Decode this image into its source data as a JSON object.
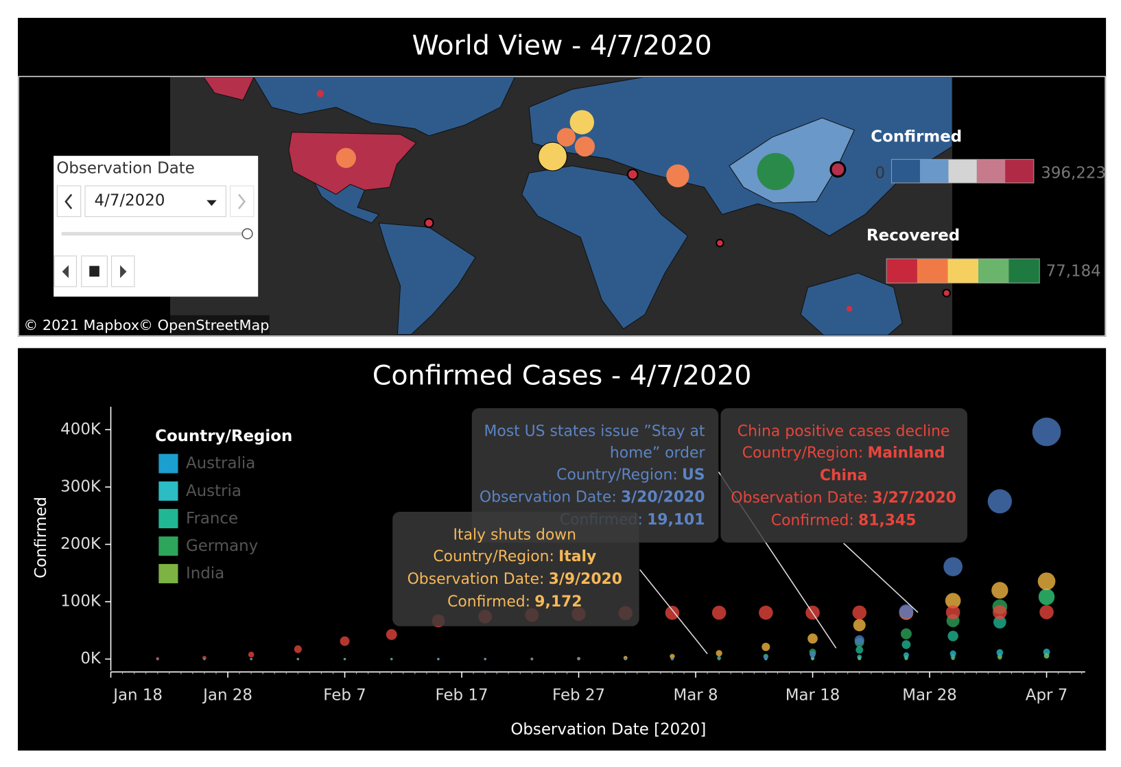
{
  "map_view": {
    "title": "World View - 4/7/2020",
    "attribution": [
      "© 2021 Mapbox",
      "© OpenStreetMap"
    ],
    "filter": {
      "title": "Observation Date",
      "value": "4/7/2020"
    },
    "legends": [
      {
        "title": "Confirmed",
        "min": "0",
        "max": "396,223",
        "colors": [
          "#2d5a8e",
          "#6a98c8",
          "#d4d4d4",
          "#c77a8c",
          "#b02a45"
        ]
      },
      {
        "title": "Recovered",
        "max": "77,184",
        "colors": [
          "#c8283c",
          "#f07a45",
          "#f5d060",
          "#6ab56b",
          "#1e7a40"
        ]
      }
    ]
  },
  "chart_data": {
    "type": "bubble",
    "title": "Confirmed Cases - 4/7/2020",
    "x_label": "Observation Date [2020]",
    "y_label": "Confirmed",
    "legend_title": "Country/Region",
    "xlim": [
      "2020-01-18",
      "2020-04-10"
    ],
    "xticks": [
      {
        "value": "2020-01-18",
        "label": "Jan 18"
      },
      {
        "value": "2020-01-28",
        "label": "Jan 28"
      },
      {
        "value": "2020-02-07",
        "label": "Feb 7"
      },
      {
        "value": "2020-02-17",
        "label": "Feb 17"
      },
      {
        "value": "2020-02-27",
        "label": "Feb 27"
      },
      {
        "value": "2020-03-08",
        "label": "Mar 8"
      },
      {
        "value": "2020-03-18",
        "label": "Mar 18"
      },
      {
        "value": "2020-03-28",
        "label": "Mar 28"
      },
      {
        "value": "2020-04-07",
        "label": "Apr 7"
      }
    ],
    "ylim": [
      -20000,
      440000
    ],
    "yticks": [
      {
        "value": 0,
        "label": "0K"
      },
      {
        "value": 100000,
        "label": "100K"
      },
      {
        "value": 200000,
        "label": "200K"
      },
      {
        "value": 300000,
        "label": "300K"
      },
      {
        "value": 400000,
        "label": "400K"
      }
    ],
    "x": [
      "2020-01-22",
      "2020-01-26",
      "2020-01-30",
      "2020-02-03",
      "2020-02-07",
      "2020-02-11",
      "2020-02-15",
      "2020-02-19",
      "2020-02-23",
      "2020-02-27",
      "2020-03-02",
      "2020-03-06",
      "2020-03-10",
      "2020-03-14",
      "2020-03-18",
      "2020-03-22",
      "2020-03-26",
      "2020-03-30",
      "2020-04-03",
      "2020-04-07"
    ],
    "series": [
      {
        "name": "Australia",
        "color": "#1a9fcf",
        "values": [
          0,
          4,
          9,
          15,
          15,
          15,
          15,
          15,
          22,
          23,
          29,
          60,
          107,
          249,
          565,
          1353,
          2799,
          4245,
          5350,
          5908
        ]
      },
      {
        "name": "Austria",
        "color": "#2bbcc4",
        "values": [
          0,
          0,
          0,
          0,
          0,
          0,
          0,
          0,
          0,
          2,
          10,
          55,
          131,
          504,
          1646,
          3582,
          6909,
          9618,
          11524,
          12297
        ]
      },
      {
        "name": "France",
        "color": "#20b894",
        "values": [
          0,
          3,
          5,
          6,
          6,
          11,
          12,
          12,
          12,
          57,
          191,
          653,
          1784,
          4469,
          9052,
          16018,
          25233,
          40174,
          64338,
          109069
        ]
      },
      {
        "name": "Germany",
        "color": "#2da55a",
        "values": [
          0,
          4,
          5,
          12,
          13,
          16,
          16,
          16,
          16,
          46,
          159,
          670,
          1457,
          4585,
          12327,
          29056,
          43938,
          66885,
          91159,
          107663
        ]
      },
      {
        "name": "India",
        "color": "#7cb342",
        "values": [
          0,
          0,
          1,
          3,
          3,
          3,
          3,
          3,
          3,
          3,
          5,
          31,
          62,
          102,
          151,
          396,
          694,
          1251,
          2567,
          5311
        ]
      },
      {
        "name": "Italy",
        "color": "#f5b843",
        "values": [
          0,
          0,
          0,
          2,
          3,
          3,
          3,
          3,
          155,
          655,
          2036,
          4636,
          10149,
          21157,
          35713,
          59138,
          80589,
          101739,
          119827,
          135586
        ]
      },
      {
        "name": "Mainland China",
        "color": "#e8453c",
        "values": [
          547,
          2062,
          7711,
          17187,
          31161,
          42708,
          66492,
          74185,
          76936,
          78497,
          80026,
          80573,
          80757,
          80844,
          80894,
          81054,
          81285,
          81470,
          81620,
          81740
        ]
      },
      {
        "name": "US",
        "color": "#4a78c0",
        "values": [
          1,
          5,
          6,
          11,
          12,
          13,
          15,
          15,
          15,
          16,
          53,
          230,
          1000,
          2700,
          7800,
          33000,
          83000,
          161000,
          275000,
          396223
        ]
      }
    ],
    "annotations": [
      {
        "title": [
          "Most US states issue ”Stay at",
          "home” order"
        ],
        "color": "#5b84c4",
        "x": "2020-03-20",
        "y": 19101,
        "fields": [
          {
            "label": "Country/Region:",
            "value": [
              "US"
            ]
          },
          {
            "label": "Observation Date:",
            "value": [
              "3/20/2020"
            ]
          },
          {
            "label": "Confirmed:",
            "value": [
              "19,101"
            ]
          }
        ]
      },
      {
        "title": [
          "China positive cases decline"
        ],
        "color": "#e8453c",
        "x": "2020-03-27",
        "y": 81345,
        "fields": [
          {
            "label": "Country/Region:",
            "value": [
              "Mainland",
              "China"
            ]
          },
          {
            "label": "Observation Date:",
            "value": [
              "3/27/2020"
            ]
          },
          {
            "label": "Confirmed:",
            "value": [
              "81,345"
            ]
          }
        ]
      },
      {
        "title": [
          "Italy shuts down"
        ],
        "color": "#f5b858",
        "x": "2020-03-09",
        "y": 9172,
        "fields": [
          {
            "label": "Country/Region:",
            "value": [
              "Italy"
            ]
          },
          {
            "label": "Observation Date:",
            "value": [
              "3/9/2020"
            ]
          },
          {
            "label": "Confirmed:",
            "value": [
              "9,172"
            ]
          }
        ]
      }
    ]
  }
}
